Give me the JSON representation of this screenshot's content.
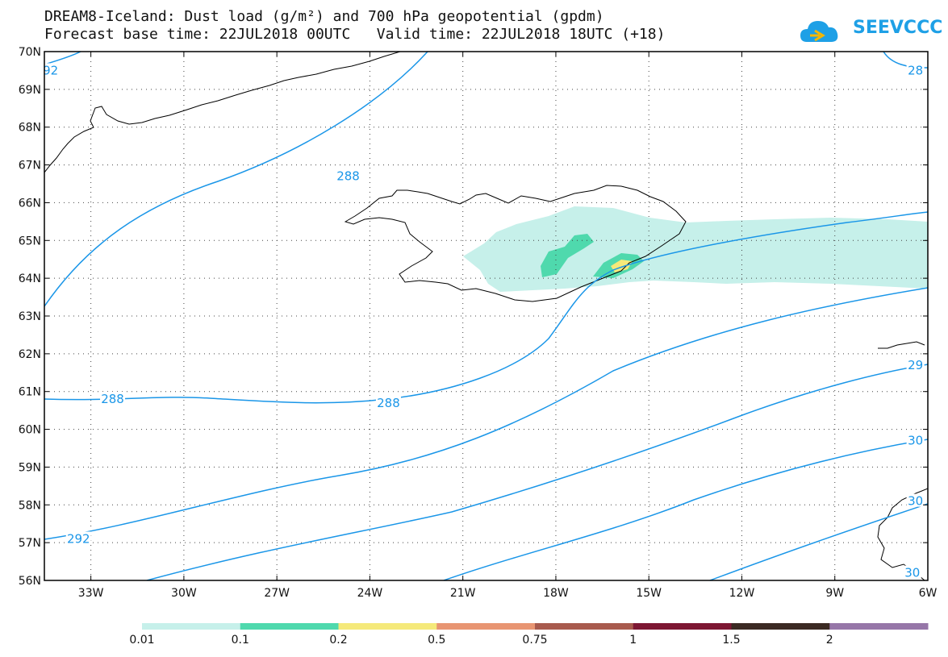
{
  "title": {
    "line1": "DREAM8-Iceland: Dust load (g/m²) and 700 hPa geopotential (gpdm)",
    "line2": "Forecast base time: 22JUL2018 00UTC   Valid time: 22JUL2018 18UTC (+18)"
  },
  "logo": {
    "text": "SEEVCCC",
    "icon": "cloud-logo-icon",
    "color": "#1ea0e6"
  },
  "map": {
    "projection": "lat-lon",
    "lon_range": [
      -34.5,
      -6
    ],
    "lat_range": [
      56,
      70
    ],
    "lat_labels": [
      "70N",
      "69N",
      "68N",
      "67N",
      "66N",
      "65N",
      "64N",
      "63N",
      "62N",
      "61N",
      "60N",
      "59N",
      "58N",
      "57N",
      "56N"
    ],
    "lon_labels": [
      "33W",
      "30W",
      "27W",
      "24W",
      "21W",
      "18W",
      "15W",
      "12W",
      "9W",
      "6W"
    ],
    "contour_color": "#1a96e8",
    "contour_labels": [
      {
        "text": "288",
        "lon": -24.7,
        "lat": 66.7
      },
      {
        "text": "288",
        "lon": -32.3,
        "lat": 60.8
      },
      {
        "text": "288",
        "lon": -23.4,
        "lat": 60.7
      },
      {
        "text": "292",
        "lon": -33.4,
        "lat": 57.1
      },
      {
        "text": "92",
        "lon": -34.3,
        "lat": 69.5
      },
      {
        "text": "28",
        "lon": -6.4,
        "lat": 69.5
      },
      {
        "text": "29",
        "lon": -6.4,
        "lat": 61.7
      },
      {
        "text": "30",
        "lon": -6.4,
        "lat": 59.7
      },
      {
        "text": "30",
        "lon": -6.4,
        "lat": 58.1
      },
      {
        "text": "30",
        "lon": -6.5,
        "lat": 56.2
      }
    ]
  },
  "colorbar": {
    "labels": [
      "0.01",
      "0.1",
      "0.2",
      "0.5",
      "0.75",
      "1",
      "1.5",
      "2"
    ],
    "colors": [
      "#c6f0ea",
      "#4fd9ad",
      "#f5e97a",
      "#e89572",
      "#a85a4d",
      "#7d1733",
      "#3b2a23",
      "#9676a8"
    ]
  },
  "dust": {
    "units": "g/m²",
    "levels_present": [
      "0.01",
      "0.1",
      "0.2"
    ]
  }
}
